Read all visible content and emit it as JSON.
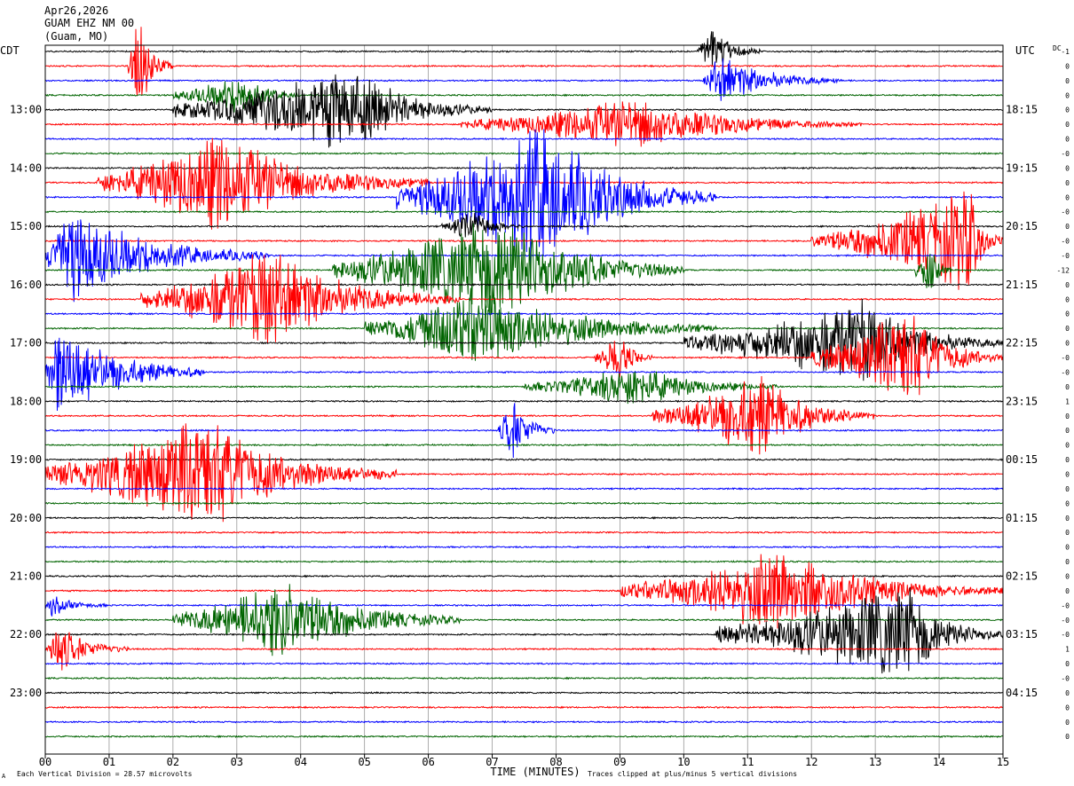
{
  "header": {
    "date": "Apr26,2026",
    "station": "GUAM EHZ NM 00",
    "location": "(Guam, MO)"
  },
  "labels": {
    "left_tz": "CDT",
    "right_tz": "UTC",
    "dc": "DC",
    "xlabel": "TIME (MINUTES)",
    "footer_left": "Each Vertical Division =   28.57 microvolts",
    "footer_right": "Traces clipped at plus/minus 5 vertical divisions",
    "corner_mark": "A"
  },
  "colors": {
    "trace_cycle": [
      "#000000",
      "#ff0000",
      "#0000ff",
      "#006400"
    ],
    "grid": "#999999",
    "frame": "#000000"
  },
  "chart_data": {
    "type": "line",
    "title": "",
    "xlabel": "TIME (MINUTES)",
    "xlim": [
      0,
      15
    ],
    "x_ticks": [
      "00",
      "01",
      "02",
      "03",
      "04",
      "05",
      "06",
      "07",
      "08",
      "09",
      "10",
      "11",
      "12",
      "13",
      "14",
      "15"
    ],
    "traces_per_hour": 4,
    "trace_count": 48,
    "left_hour_labels": [
      "13:00",
      "14:00",
      "15:00",
      "16:00",
      "17:00",
      "18:00",
      "19:00",
      "20:00",
      "21:00",
      "22:00",
      "23:00"
    ],
    "right_hour_labels": [
      "18:15",
      "19:15",
      "20:15",
      "21:15",
      "22:15",
      "23:15",
      "00:15",
      "01:15",
      "02:15",
      "03:15",
      "04:15"
    ],
    "dc_offsets": [
      "-1",
      "0",
      "0",
      "0",
      "0",
      "0",
      "0",
      "-0",
      "0",
      "0",
      "0",
      "-0",
      "0",
      "-0",
      "-0",
      "-12",
      "0",
      "0",
      "0",
      "0",
      "0",
      "-0",
      "-0",
      "0",
      "1",
      "0",
      "0",
      "0",
      "0",
      "0",
      "0",
      "0",
      "0",
      "0",
      "0",
      "0",
      "0",
      "0",
      "-0",
      "-0",
      "-0",
      "1",
      "0",
      "-0",
      "0",
      "0",
      "0",
      "0"
    ],
    "events": [
      {
        "trace": 0,
        "start_min": 10.2,
        "peak_min": 10.4,
        "end_min": 11.2,
        "amplitude": 1.5
      },
      {
        "trace": 1,
        "start_min": 1.3,
        "peak_min": 1.45,
        "end_min": 2.0,
        "amplitude": 3.0
      },
      {
        "trace": 2,
        "start_min": 10.3,
        "peak_min": 10.55,
        "end_min": 12.5,
        "amplitude": 1.5
      },
      {
        "trace": 3,
        "start_min": 2.0,
        "peak_min": 3.1,
        "end_min": 4.0,
        "amplitude": 1.2
      },
      {
        "trace": 4,
        "start_min": 2.0,
        "peak_min": 4.8,
        "end_min": 7.0,
        "amplitude": 2.5
      },
      {
        "trace": 5,
        "start_min": 6.5,
        "peak_min": 9.3,
        "end_min": 12.8,
        "amplitude": 1.5
      },
      {
        "trace": 9,
        "start_min": 0.8,
        "peak_min": 2.7,
        "end_min": 6.0,
        "amplitude": 3.0
      },
      {
        "trace": 10,
        "start_min": 5.5,
        "peak_min": 7.8,
        "end_min": 10.5,
        "amplitude": 4.5
      },
      {
        "trace": 12,
        "start_min": 6.2,
        "peak_min": 6.7,
        "end_min": 7.5,
        "amplitude": 1.0
      },
      {
        "trace": 13,
        "start_min": 12.0,
        "peak_min": 14.5,
        "end_min": 15.0,
        "amplitude": 3.0
      },
      {
        "trace": 14,
        "start_min": 0.0,
        "peak_min": 0.3,
        "end_min": 3.5,
        "amplitude": 3.0
      },
      {
        "trace": 15,
        "start_min": 4.5,
        "peak_min": 7.2,
        "end_min": 10.0,
        "amplitude": 3.5
      },
      {
        "trace": 15,
        "start_min": 13.6,
        "peak_min": 13.85,
        "end_min": 14.2,
        "amplitude": 1.5
      },
      {
        "trace": 17,
        "start_min": 1.5,
        "peak_min": 3.5,
        "end_min": 6.5,
        "amplitude": 3.0
      },
      {
        "trace": 19,
        "start_min": 5.0,
        "peak_min": 6.8,
        "end_min": 10.5,
        "amplitude": 2.5
      },
      {
        "trace": 20,
        "start_min": 10.0,
        "peak_min": 12.8,
        "end_min": 15.0,
        "amplitude": 2.5
      },
      {
        "trace": 21,
        "start_min": 8.6,
        "peak_min": 9.0,
        "end_min": 9.5,
        "amplitude": 1.5
      },
      {
        "trace": 21,
        "start_min": 12.0,
        "peak_min": 13.5,
        "end_min": 15.0,
        "amplitude": 3.0
      },
      {
        "trace": 22,
        "start_min": 0.0,
        "peak_min": 0.2,
        "end_min": 2.5,
        "amplitude": 3.0
      },
      {
        "trace": 23,
        "start_min": 7.5,
        "peak_min": 9.3,
        "end_min": 11.5,
        "amplitude": 1.2
      },
      {
        "trace": 25,
        "start_min": 9.5,
        "peak_min": 11.2,
        "end_min": 13.0,
        "amplitude": 2.5
      },
      {
        "trace": 26,
        "start_min": 7.1,
        "peak_min": 7.3,
        "end_min": 8.0,
        "amplitude": 2.0
      },
      {
        "trace": 29,
        "start_min": 0.0,
        "peak_min": 2.5,
        "end_min": 5.5,
        "amplitude": 3.5
      },
      {
        "trace": 37,
        "start_min": 9.0,
        "peak_min": 11.5,
        "end_min": 15.0,
        "amplitude": 2.5
      },
      {
        "trace": 38,
        "start_min": 0.0,
        "peak_min": 0.1,
        "end_min": 1.0,
        "amplitude": 0.6
      },
      {
        "trace": 39,
        "start_min": 2.0,
        "peak_min": 3.8,
        "end_min": 6.5,
        "amplitude": 2.5
      },
      {
        "trace": 40,
        "start_min": 10.5,
        "peak_min": 13.5,
        "end_min": 15.0,
        "amplitude": 3.0
      },
      {
        "trace": 41,
        "start_min": 0.0,
        "peak_min": 0.2,
        "end_min": 1.3,
        "amplitude": 1.5
      }
    ]
  }
}
